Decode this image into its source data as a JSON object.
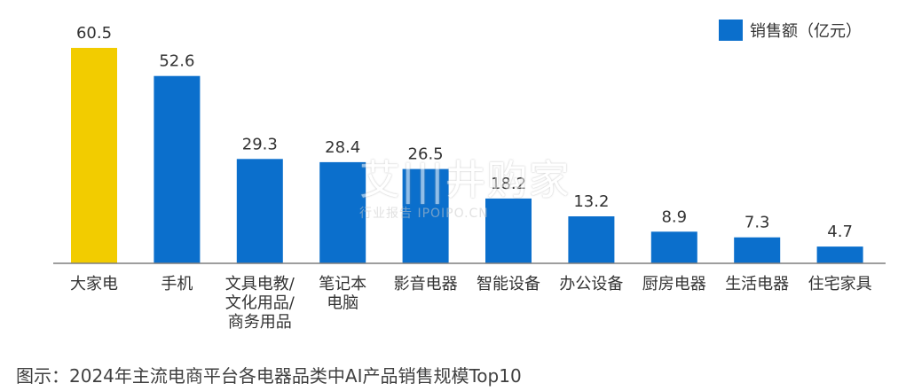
{
  "chart_data": {
    "type": "bar",
    "categories": [
      "大家电",
      "手机",
      "文具电教/文化用品/商务用品",
      "笔记本电脑",
      "影音电器",
      "智能设备",
      "办公设备",
      "厨房电器",
      "生活电器",
      "住宅家具"
    ],
    "category_label_lines": [
      [
        "大家电"
      ],
      [
        "手机"
      ],
      [
        "文具电教/",
        "文化用品/",
        "商务用品"
      ],
      [
        "笔记本",
        "电脑"
      ],
      [
        "影音电器"
      ],
      [
        "智能设备"
      ],
      [
        "办公设备"
      ],
      [
        "厨房电器"
      ],
      [
        "生活电器"
      ],
      [
        "住宅家具"
      ]
    ],
    "series": [
      {
        "name": "销售额（亿元）",
        "values": [
          60.5,
          52.6,
          29.3,
          28.4,
          26.5,
          18.2,
          13.2,
          8.9,
          7.3,
          4.7
        ]
      }
    ],
    "value_labels": [
      "60.5",
      "52.6",
      "29.3",
      "28.4",
      "26.5",
      "18.2",
      "13.2",
      "8.9",
      "7.3",
      "4.7"
    ],
    "ylim": [
      0,
      60.5
    ],
    "grid": false,
    "legend_position": "top-right",
    "highlight_index": 0,
    "colors": {
      "bar": "#0b6fcc",
      "highlight": "#f2cc00",
      "axis": "#7f7f7f"
    }
  },
  "legend": {
    "label": "销售额（亿元）"
  },
  "caption": "图示：2024年主流电商平台各电器品类中AI产品销售规模Top10",
  "watermark": {
    "main": "艾|||井购家",
    "sub": "行业报告 IPOIPO.CN"
  }
}
